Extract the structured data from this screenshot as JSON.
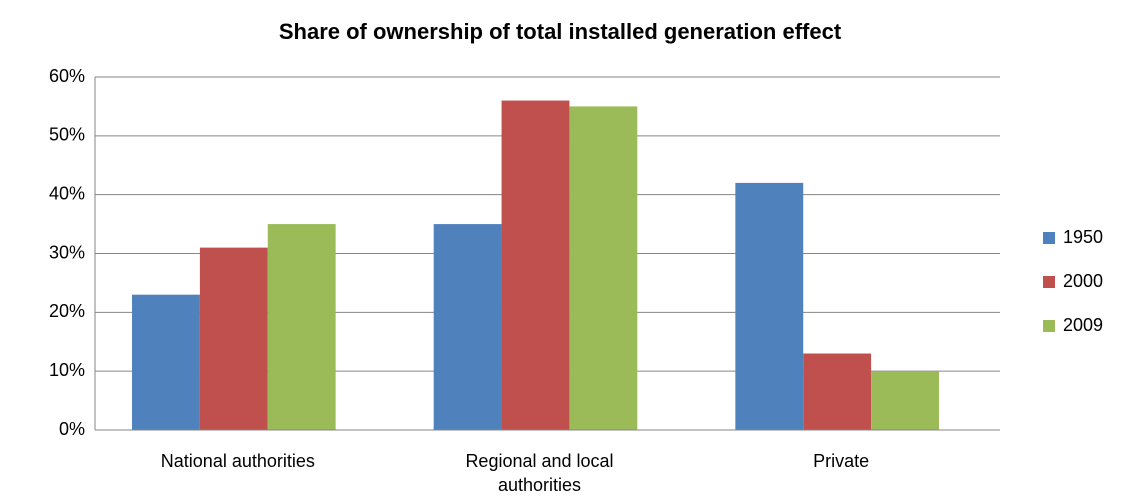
{
  "chart_data": {
    "type": "bar",
    "title": "Share of ownership of total installed generation effect",
    "categories": [
      "National authorities",
      "Regional and local authorities",
      "Private"
    ],
    "series": [
      {
        "name": "1950",
        "color": "#4f81bd",
        "values": [
          23,
          35,
          42
        ]
      },
      {
        "name": "2000",
        "color": "#c0504d",
        "values": [
          31,
          56,
          13
        ]
      },
      {
        "name": "2009",
        "color": "#9bbb59",
        "values": [
          35,
          55,
          10
        ]
      }
    ],
    "ylim": [
      0,
      60
    ],
    "yticks": [
      {
        "value": 0,
        "label": "0%"
      },
      {
        "value": 10,
        "label": "10%"
      },
      {
        "value": 20,
        "label": "20%"
      },
      {
        "value": 30,
        "label": "30%"
      },
      {
        "value": 40,
        "label": "40%"
      },
      {
        "value": 50,
        "label": "50%"
      },
      {
        "value": 60,
        "label": "60%"
      }
    ],
    "grid": true,
    "legend": "right"
  }
}
